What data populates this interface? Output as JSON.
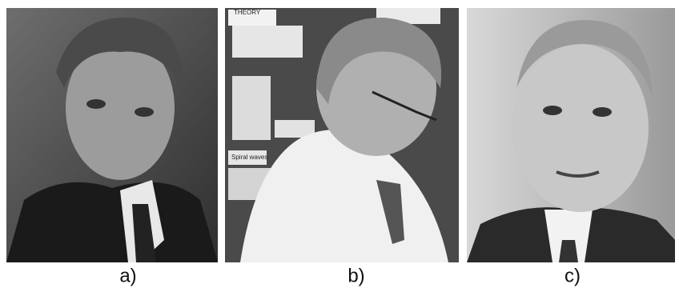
{
  "figure": {
    "panels": [
      {
        "label": "a)"
      },
      {
        "label": "b)",
        "poster_texts": [
          "THEORY",
          "Spiral waves"
        ]
      },
      {
        "label": "c)"
      }
    ]
  }
}
